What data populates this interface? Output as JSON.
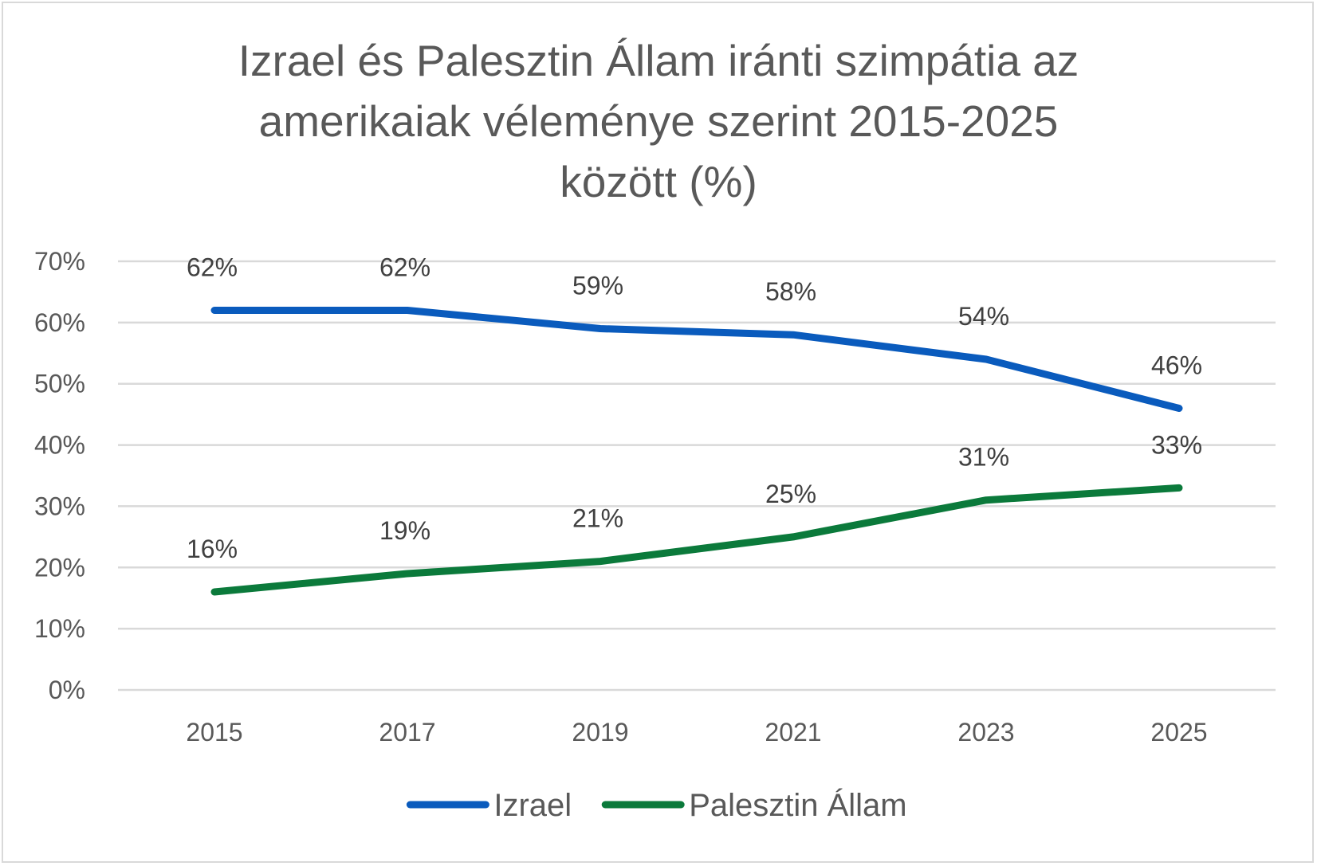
{
  "chart_data": {
    "type": "line",
    "title": "Izrael és Palesztin Állam iránti szimpátia az amerikaiak véleménye szerint 2015-2025 között (%)",
    "title_lines": [
      "Izrael és Palesztin Állam iránti szimpátia az",
      "amerikaiak véleménye szerint 2015-2025",
      "között (%)"
    ],
    "categories": [
      "2015",
      "2017",
      "2019",
      "2021",
      "2023",
      "2025"
    ],
    "series": [
      {
        "name": "Izrael",
        "values": [
          62,
          62,
          59,
          58,
          54,
          46
        ],
        "labels": [
          "62%",
          "62%",
          "59%",
          "58%",
          "54%",
          "46%"
        ],
        "color": "#0a5bbd"
      },
      {
        "name": "Palesztin Állam",
        "values": [
          16,
          19,
          21,
          25,
          31,
          33
        ],
        "labels": [
          "16%",
          "19%",
          "21%",
          "25%",
          "31%",
          "33%"
        ],
        "color": "#0b7a3b"
      }
    ],
    "y_ticks": [
      "0%",
      "10%",
      "20%",
      "30%",
      "40%",
      "50%",
      "60%",
      "70%"
    ],
    "ylim": [
      0,
      70
    ],
    "ytick_step": 10,
    "grid": true,
    "legend_position": "bottom",
    "gridline_color": "#d9d9d9"
  }
}
